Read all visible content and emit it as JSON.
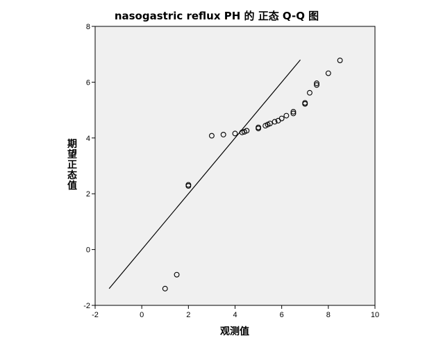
{
  "chart_data": {
    "type": "scatter",
    "title": "nasogastric reflux PH 的 正态 Q-Q 图",
    "xlabel": "观测值",
    "ylabel": "期望正态值",
    "xlim": [
      -2,
      10
    ],
    "ylim": [
      -2,
      8
    ],
    "xticks": [
      "-2",
      "0",
      "2",
      "4",
      "6",
      "8",
      "10"
    ],
    "yticks": [
      "-2",
      "0",
      "2",
      "4",
      "6",
      "8"
    ],
    "grid": false,
    "legend": "none",
    "background": "#f0f0f0",
    "marker": "open-circle",
    "points": [
      {
        "x": 1.0,
        "y": -1.4
      },
      {
        "x": 1.5,
        "y": -0.9
      },
      {
        "x": 2.0,
        "y": 2.28
      },
      {
        "x": 2.0,
        "y": 2.32
      },
      {
        "x": 3.0,
        "y": 4.08
      },
      {
        "x": 3.5,
        "y": 4.12
      },
      {
        "x": 4.0,
        "y": 4.16
      },
      {
        "x": 4.3,
        "y": 4.2
      },
      {
        "x": 4.4,
        "y": 4.22
      },
      {
        "x": 4.5,
        "y": 4.26
      },
      {
        "x": 5.0,
        "y": 4.34
      },
      {
        "x": 5.0,
        "y": 4.38
      },
      {
        "x": 5.3,
        "y": 4.44
      },
      {
        "x": 5.4,
        "y": 4.48
      },
      {
        "x": 5.5,
        "y": 4.52
      },
      {
        "x": 5.7,
        "y": 4.58
      },
      {
        "x": 5.85,
        "y": 4.62
      },
      {
        "x": 6.0,
        "y": 4.7
      },
      {
        "x": 6.2,
        "y": 4.8
      },
      {
        "x": 6.5,
        "y": 4.88
      },
      {
        "x": 6.5,
        "y": 4.94
      },
      {
        "x": 7.0,
        "y": 5.22
      },
      {
        "x": 7.0,
        "y": 5.26
      },
      {
        "x": 7.2,
        "y": 5.62
      },
      {
        "x": 7.5,
        "y": 5.9
      },
      {
        "x": 7.5,
        "y": 5.96
      },
      {
        "x": 8.0,
        "y": 6.32
      },
      {
        "x": 8.5,
        "y": 6.78
      }
    ],
    "reference_line": {
      "x": [
        -1.4,
        6.8
      ],
      "y": [
        -1.4,
        6.8
      ]
    }
  }
}
